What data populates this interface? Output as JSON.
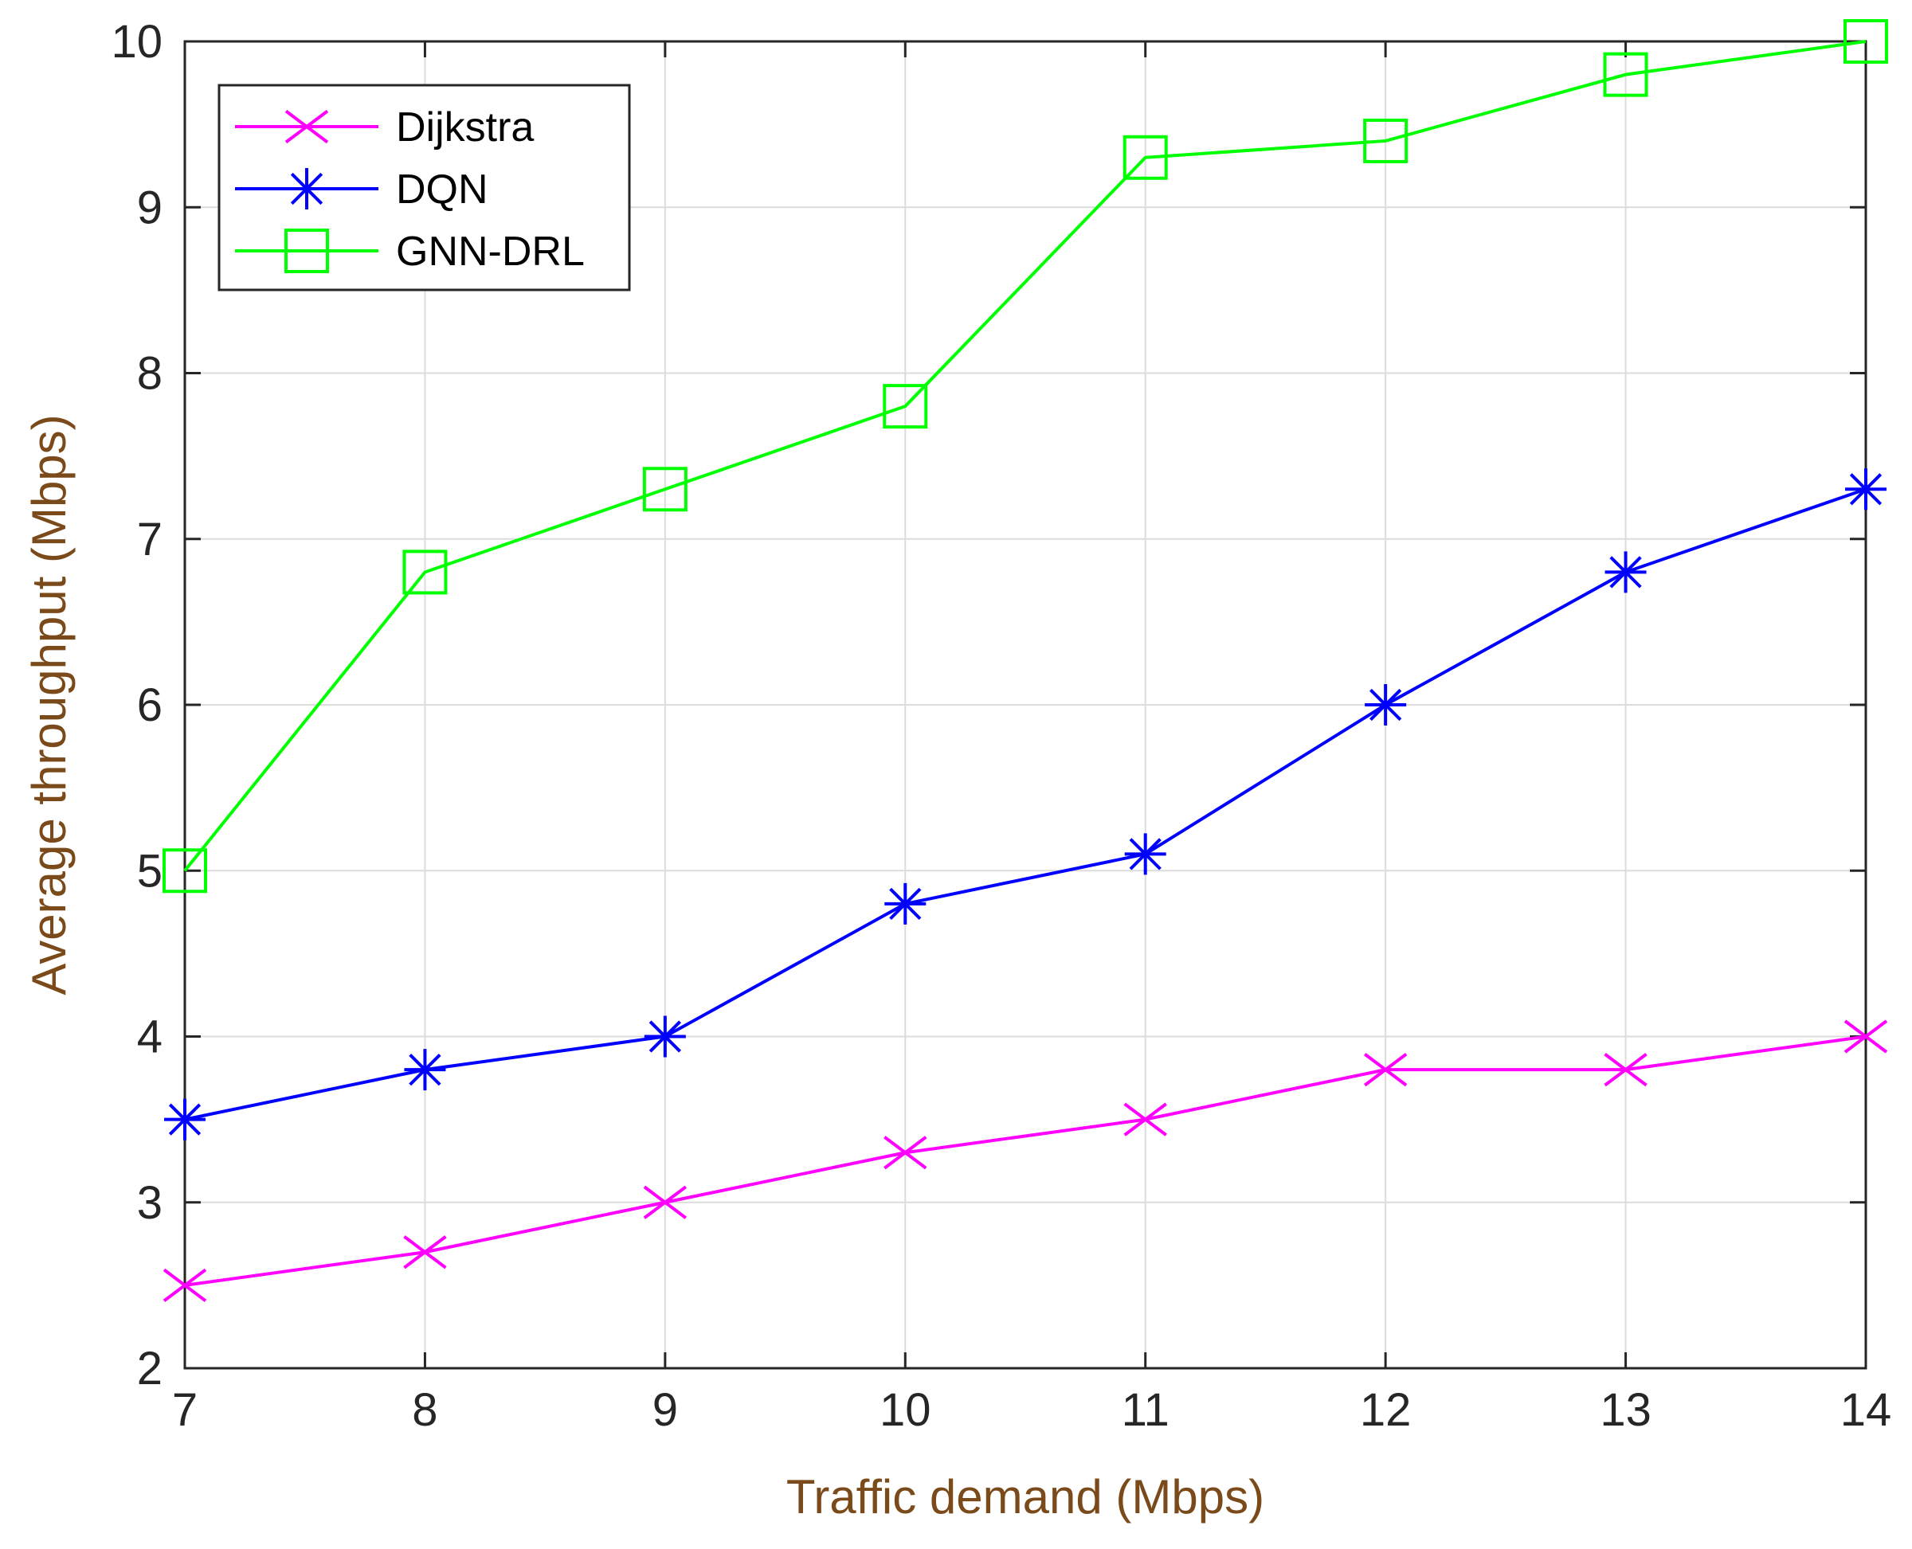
{
  "chart_data": {
    "type": "line",
    "title": "",
    "xlabel": "Traffic demand (Mbps)",
    "ylabel": "Average throughput (Mbps)",
    "xlim": [
      7,
      14
    ],
    "ylim": [
      2,
      10
    ],
    "xticks": [
      7,
      8,
      9,
      10,
      11,
      12,
      13,
      14
    ],
    "yticks": [
      2,
      3,
      4,
      5,
      6,
      7,
      8,
      9,
      10
    ],
    "grid": true,
    "legend_position": "top-left",
    "x": [
      7,
      8,
      9,
      10,
      11,
      12,
      13,
      14
    ],
    "series": [
      {
        "name": "Dijkstra",
        "color": "#ff00ff",
        "marker": "x",
        "values": [
          2.5,
          2.7,
          3.0,
          3.3,
          3.5,
          3.8,
          3.8,
          4.0
        ]
      },
      {
        "name": "DQN",
        "color": "#0000ff",
        "marker": "asterisk",
        "values": [
          3.5,
          3.8,
          4.0,
          4.8,
          5.1,
          6.0,
          6.8,
          7.3
        ]
      },
      {
        "name": "GNN-DRL",
        "color": "#00ff00",
        "marker": "square",
        "values": [
          5.0,
          6.8,
          7.3,
          7.8,
          9.3,
          9.4,
          9.8,
          10.0
        ]
      }
    ],
    "axis_label_color": "#7a4a1a"
  }
}
